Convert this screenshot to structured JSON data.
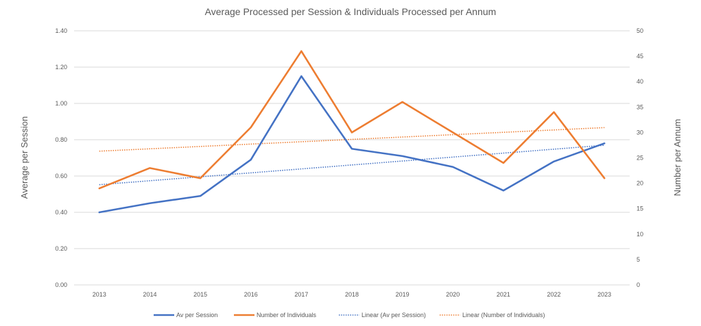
{
  "chart_data": {
    "type": "line",
    "title": "Average Processed per Session & Individuals Processed per Annum",
    "xlabel": "",
    "ylabel": "Average per Session",
    "y2label": "Number per Annum",
    "categories": [
      "2013",
      "2014",
      "2015",
      "2016",
      "2017",
      "2018",
      "2019",
      "2020",
      "2021",
      "2022",
      "2023"
    ],
    "y_axis": {
      "range": [
        0,
        1.4
      ],
      "ticks": [
        "0.00",
        "0.20",
        "0.40",
        "0.60",
        "0.80",
        "1.00",
        "1.20",
        "1.40"
      ],
      "tick_values": [
        0,
        0.2,
        0.4,
        0.6,
        0.8,
        1.0,
        1.2,
        1.4
      ]
    },
    "y2_axis": {
      "range": [
        0,
        50
      ],
      "ticks": [
        "0",
        "5",
        "10",
        "15",
        "20",
        "25",
        "30",
        "35",
        "40",
        "45",
        "50"
      ],
      "tick_values": [
        0,
        5,
        10,
        15,
        20,
        25,
        30,
        35,
        40,
        45,
        50
      ]
    },
    "grid": true,
    "legend_position": "bottom",
    "series": [
      {
        "name": "Av per Session",
        "axis": "left",
        "color": "#4472C4",
        "style": "solid",
        "values": [
          0.4,
          0.45,
          0.49,
          0.69,
          1.15,
          0.75,
          0.71,
          0.65,
          0.52,
          0.68,
          0.78
        ]
      },
      {
        "name": "Number of Individuals",
        "axis": "right",
        "color": "#ED7D31",
        "style": "solid",
        "values": [
          19,
          23,
          21,
          31,
          46,
          30,
          36,
          30,
          24,
          34,
          21
        ]
      }
    ],
    "trendlines": [
      {
        "name": "Linear (Av per Session)",
        "of": "Av per Session",
        "axis": "left",
        "color": "#4472C4",
        "style": "dotted",
        "type": "linear"
      },
      {
        "name": "Linear (Number of Individuals)",
        "of": "Number of Individuals",
        "axis": "right",
        "color": "#ED7D31",
        "style": "dotted",
        "type": "linear"
      }
    ]
  }
}
